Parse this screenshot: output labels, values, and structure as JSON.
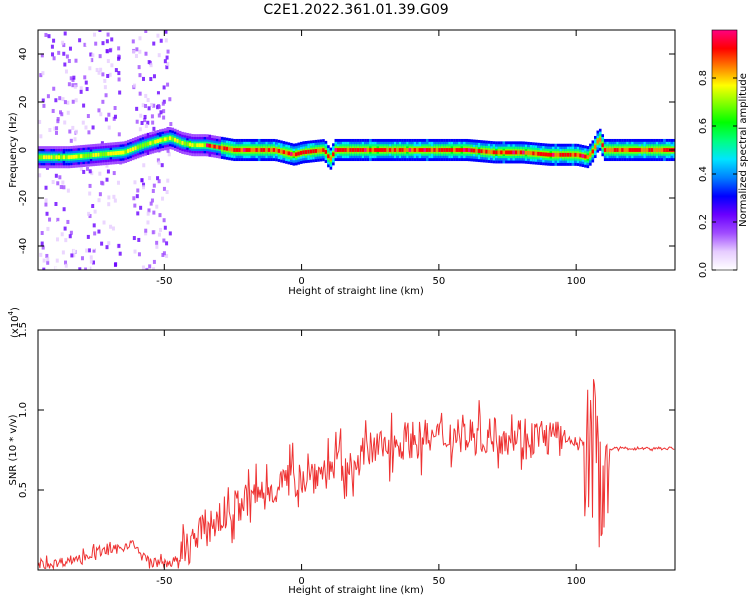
{
  "figure": {
    "title": "C2E1.2022.361.01.39.G09"
  },
  "chart_data": [
    {
      "type": "heatmap",
      "xlabel": "Height of straight line (km)",
      "ylabel": "Frequency (Hz)",
      "xlim": [
        -96,
        136
      ],
      "ylim": [
        -50,
        50
      ],
      "xticks": [
        -50,
        0,
        50,
        100
      ],
      "yticks": [
        -40,
        -20,
        0,
        20,
        40
      ],
      "colorbar": {
        "label": "Normalized spectral amplitude",
        "range": [
          0,
          1
        ],
        "ticks": [
          0.0,
          0.2,
          0.4,
          0.6,
          0.8
        ],
        "colormap": [
          "#ffffff",
          "#e6ccff",
          "#a04cff",
          "#6a00ff",
          "#0000ff",
          "#0080ff",
          "#00e5ff",
          "#00ff80",
          "#00ff00",
          "#80ff00",
          "#ffff00",
          "#ff8000",
          "#ff0000",
          "#ff0080"
        ]
      },
      "ridge": {
        "x": [
          -96,
          -85,
          -75,
          -65,
          -58,
          -52,
          -48,
          -44,
          -40,
          -35,
          -30,
          -25,
          -20,
          -10,
          -3,
          0,
          8,
          10,
          12,
          15,
          20,
          30,
          40,
          50,
          60,
          70,
          80,
          90,
          100,
          104,
          106,
          108,
          110,
          115,
          125,
          136
        ],
        "y": [
          -3,
          -3,
          -2,
          -1,
          2,
          4,
          5,
          3,
          2,
          2,
          1,
          0,
          0,
          0,
          -2,
          -1,
          0,
          -4,
          0,
          0,
          0,
          0,
          0,
          0,
          0,
          -1,
          -1,
          -2,
          -2,
          -3,
          0,
          5,
          0,
          0,
          0,
          0
        ]
      }
    },
    {
      "type": "line",
      "xlabel": "Height of straight line (km)",
      "ylabel": "SNR (10 * v/v)",
      "y_multiplier": "(x10",
      "y_multiplier_exp": "4",
      "xlim": [
        -96,
        136
      ],
      "ylim": [
        0,
        1.5
      ],
      "xticks": [
        -50,
        0,
        50,
        100
      ],
      "yticks": [
        0.5,
        1.0,
        1.5
      ],
      "color": "#ee3333",
      "series": {
        "x": [
          -96,
          -90,
          -85,
          -80,
          -75,
          -70,
          -65,
          -62,
          -60,
          -55,
          -50,
          -45,
          -40,
          -35,
          -30,
          -25,
          -20,
          -15,
          -10,
          -5,
          0,
          5,
          10,
          14,
          16,
          18,
          20,
          25,
          30,
          35,
          40,
          45,
          50,
          55,
          60,
          65,
          70,
          75,
          80,
          85,
          90,
          95,
          100,
          103,
          105,
          107,
          109,
          111,
          115,
          120,
          125,
          130,
          136
        ],
        "y": [
          0.03,
          0.04,
          0.06,
          0.08,
          0.11,
          0.12,
          0.14,
          0.18,
          0.12,
          0.05,
          0.04,
          0.06,
          0.18,
          0.26,
          0.32,
          0.38,
          0.43,
          0.48,
          0.52,
          0.56,
          0.58,
          0.6,
          0.63,
          0.7,
          0.5,
          0.66,
          0.7,
          0.74,
          0.78,
          0.8,
          0.82,
          0.82,
          0.83,
          0.84,
          0.84,
          0.84,
          0.84,
          0.84,
          0.85,
          0.84,
          0.83,
          0.82,
          0.8,
          0.78,
          0.76,
          0.75,
          0.5,
          0.75,
          0.76,
          0.76,
          0.76,
          0.76,
          0.76
        ]
      }
    }
  ]
}
